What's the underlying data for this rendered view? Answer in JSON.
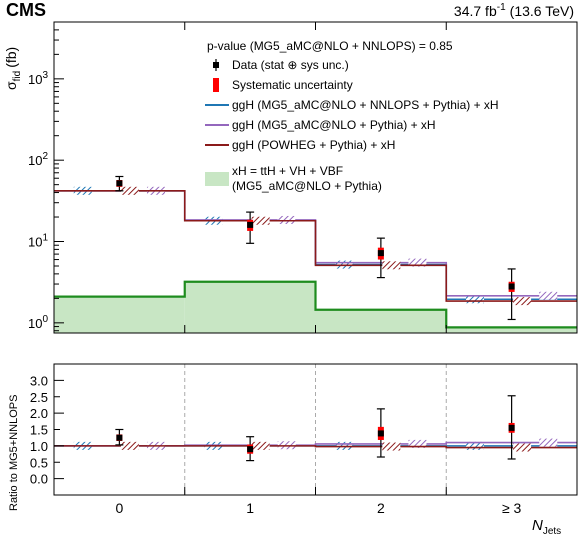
{
  "header": {
    "experiment": "CMS",
    "lumi_value": "34.7 fb",
    "lumi_exp": "-1",
    "energy": "(13.6 TeV)"
  },
  "annotation": "p-value (MG5_aMC@NLO + NNLOPS) = 0.85",
  "legend": [
    {
      "key": "data",
      "label": "Data (stat ⊕ sys unc.)",
      "style": "marker",
      "color": "#000000"
    },
    {
      "key": "syst",
      "label": "Systematic uncertainty",
      "style": "redbar",
      "color": "#ff0000"
    },
    {
      "key": "nnlops",
      "label": "ggH (MG5_aMC@NLO + NNLOPS + Pythia) + xH",
      "style": "line",
      "color": "#1f77b4"
    },
    {
      "key": "mg5",
      "label": "ggH (MG5_aMC@NLO + Pythia) + xH",
      "style": "line",
      "color": "#9467bd"
    },
    {
      "key": "powheg",
      "label": "ggH (POWHEG + Pythia) + xH",
      "style": "line",
      "color": "#8b1a1a"
    },
    {
      "key": "xh",
      "label": "xH = ttH + VH + VBF",
      "label2": "(MG5_aMC@NLO + Pythia)",
      "style": "fill",
      "color": "#c8e6c4",
      "edge": "#1e8c1e"
    }
  ],
  "chart_data": [
    {
      "type": "line",
      "panel": "main",
      "ylabel_main": "σ",
      "ylabel_sub": "fid",
      "ylabel_unit": "(fb)",
      "yscale": "log",
      "ylim": [
        0.75,
        5000
      ],
      "yticks": [
        {
          "value": 1,
          "base": "10",
          "exp": "0"
        },
        {
          "value": 10,
          "base": "10",
          "exp": "1"
        },
        {
          "value": 100,
          "base": "10",
          "exp": "2"
        },
        {
          "value": 1000,
          "base": "10",
          "exp": "3"
        }
      ],
      "categories": [
        "0",
        "1",
        "2",
        "≥ 3"
      ],
      "series": [
        {
          "key": "nnlops",
          "color": "#1f77b4",
          "values": [
            42,
            18,
            5.2,
            1.95
          ]
        },
        {
          "key": "mg5",
          "color": "#9467bd",
          "values": [
            42,
            18.4,
            5.5,
            2.15
          ]
        },
        {
          "key": "powheg",
          "color": "#8b1a1a",
          "values": [
            42,
            18,
            5.1,
            1.85
          ]
        },
        {
          "key": "xh",
          "color": "#1e8c1e",
          "values": [
            2.1,
            3.2,
            1.45,
            0.88
          ]
        }
      ],
      "data": {
        "values": [
          52,
          16,
          7.2,
          2.8
        ],
        "err_up": [
          11,
          7,
          3.8,
          1.8
        ],
        "err_down": [
          10,
          6.5,
          3.6,
          1.7
        ],
        "syst_up": [
          5,
          2.5,
          1.2,
          0.4
        ],
        "syst_down": [
          5,
          2.5,
          1.2,
          0.4
        ]
      }
    },
    {
      "type": "line",
      "panel": "ratio",
      "ylabel": "Ratio to MG5+NNLOPS",
      "ylim": [
        -0.5,
        3.5
      ],
      "yticks": [
        "0.0",
        "0.5",
        "1.0",
        "1.5",
        "2.0",
        "2.5",
        "3.0"
      ],
      "xlabel_main": "N",
      "xlabel_sub": "Jets",
      "categories": [
        "0",
        "1",
        "2",
        "≥ 3"
      ],
      "series": [
        {
          "key": "nnlops",
          "color": "#1f77b4",
          "values": [
            1.0,
            1.0,
            1.0,
            1.0
          ]
        },
        {
          "key": "mg5",
          "color": "#9467bd",
          "values": [
            1.0,
            1.02,
            1.06,
            1.1
          ]
        },
        {
          "key": "powheg",
          "color": "#8b1a1a",
          "values": [
            1.0,
            1.0,
            0.98,
            0.95
          ]
        }
      ],
      "data": {
        "values": [
          1.25,
          0.9,
          1.38,
          1.55
        ],
        "err_up": [
          0.25,
          0.38,
          0.75,
          0.98
        ],
        "err_down": [
          0.22,
          0.35,
          0.72,
          0.95
        ],
        "syst_up": [
          0.1,
          0.14,
          0.2,
          0.15
        ],
        "syst_down": [
          0.1,
          0.14,
          0.2,
          0.15
        ]
      }
    }
  ]
}
